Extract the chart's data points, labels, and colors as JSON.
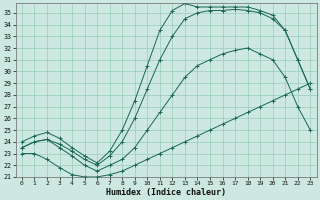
{
  "bg_color": "#cce8e0",
  "grid_color": "#99ccbb",
  "line_color": "#1a6655",
  "xlabel": "Humidex (Indice chaleur)",
  "xlim": [
    -0.5,
    23.5
  ],
  "ylim": [
    21,
    35.8
  ],
  "xticks": [
    0,
    1,
    2,
    3,
    4,
    5,
    6,
    7,
    8,
    9,
    10,
    11,
    12,
    13,
    14,
    15,
    16,
    17,
    18,
    19,
    20,
    21,
    22,
    23
  ],
  "yticks": [
    21,
    22,
    23,
    24,
    25,
    26,
    27,
    28,
    29,
    30,
    31,
    32,
    33,
    34,
    35
  ],
  "s1_x": [
    0,
    1,
    2,
    3,
    4,
    5,
    6,
    7,
    8,
    9,
    10,
    11,
    12,
    13,
    14,
    15,
    16,
    17,
    18,
    19,
    20,
    21,
    22,
    23
  ],
  "s1_y": [
    23.0,
    23.0,
    22.5,
    21.8,
    21.2,
    21.0,
    21.0,
    21.2,
    21.5,
    22.0,
    22.5,
    23.0,
    23.5,
    24.0,
    24.5,
    25.0,
    25.5,
    26.0,
    26.5,
    27.0,
    27.5,
    28.0,
    28.5,
    29.0
  ],
  "s2_x": [
    0,
    1,
    2,
    3,
    4,
    5,
    6,
    7,
    8,
    9,
    10,
    11,
    12,
    13,
    14,
    15,
    16,
    17,
    18,
    19,
    20,
    21,
    22,
    23
  ],
  "s2_y": [
    23.5,
    24.0,
    24.2,
    23.5,
    22.8,
    22.0,
    21.5,
    22.0,
    22.5,
    23.5,
    25.0,
    26.5,
    28.0,
    29.5,
    30.5,
    31.0,
    31.5,
    31.8,
    32.0,
    31.5,
    31.0,
    29.5,
    27.0,
    25.0
  ],
  "s3_x": [
    0,
    1,
    2,
    3,
    4,
    5,
    6,
    7,
    8,
    9,
    10,
    11,
    12,
    13,
    14,
    15,
    16,
    17,
    18,
    19,
    20,
    21,
    22,
    23
  ],
  "s3_y": [
    23.5,
    24.0,
    24.2,
    23.8,
    23.2,
    22.5,
    22.0,
    22.8,
    24.0,
    26.0,
    28.5,
    31.0,
    33.0,
    34.5,
    35.0,
    35.2,
    35.2,
    35.3,
    35.2,
    35.0,
    34.5,
    33.5,
    31.0,
    28.5
  ],
  "s4_x": [
    0,
    1,
    2,
    3,
    4,
    5,
    6,
    7,
    8,
    9,
    10,
    11,
    12,
    13,
    14,
    15,
    16,
    17,
    18,
    19,
    20,
    21,
    22,
    23
  ],
  "s4_y": [
    24.0,
    24.5,
    24.8,
    24.3,
    23.5,
    22.8,
    22.2,
    23.2,
    25.0,
    27.5,
    30.5,
    33.5,
    35.2,
    35.8,
    35.5,
    35.5,
    35.5,
    35.5,
    35.5,
    35.2,
    34.8,
    33.5,
    31.0,
    28.5
  ]
}
